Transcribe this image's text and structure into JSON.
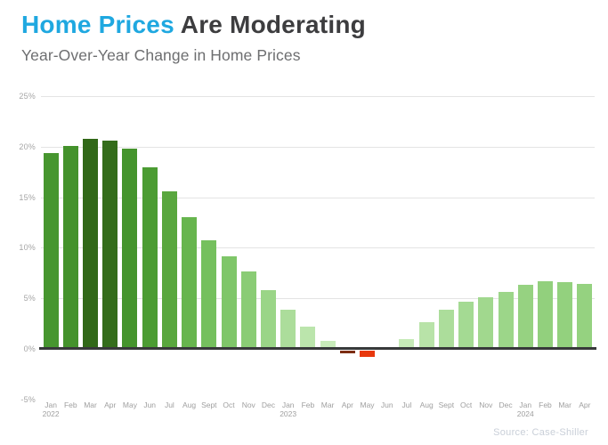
{
  "header": {
    "title_highlight": "Home Prices ",
    "title_rest": "Are Moderating",
    "subtitle": "Year-Over-Year Change in Home Prices"
  },
  "source": "Source: Case-Shiller",
  "colors": {
    "title_highlight": "#1fa8e0",
    "title_rest": "#3d3d3f",
    "subtitle_text": "#6d6e70",
    "axis_tick_text": "#a6a6a6",
    "month_label_text": "#9f9f9f",
    "gridline": "#e4e4e4",
    "zero_axis": "#37393a",
    "negative_bar_strong": "#e8380d",
    "negative_bar_slight": "#7c2d12",
    "source_text": "#c9cfd8",
    "green_scale": [
      [
        0,
        "#cfeec2"
      ],
      [
        4,
        "#abdd9a"
      ],
      [
        7,
        "#8fcf7a"
      ],
      [
        10,
        "#79c363"
      ],
      [
        13,
        "#67b54e"
      ],
      [
        16,
        "#57a53c"
      ],
      [
        18,
        "#4c9c33"
      ],
      [
        20.2,
        "#44922c"
      ],
      [
        20.5,
        "#356f1c"
      ],
      [
        21,
        "#2e6315"
      ]
    ]
  },
  "chart_data": {
    "type": "bar",
    "title": "Home Prices Are Moderating",
    "subtitle": "Year-Over-Year Change in Home Prices",
    "unit": "%",
    "categories": [
      "Jan 2022",
      "Feb",
      "Mar",
      "Apr",
      "May",
      "Jun",
      "Jul",
      "Aug",
      "Sept",
      "Oct",
      "Nov",
      "Dec",
      "Jan 2023",
      "Feb",
      "Mar",
      "Apr",
      "May",
      "Jun",
      "Jul",
      "Aug",
      "Sept",
      "Oct",
      "Nov",
      "Dec",
      "Jan 2024",
      "Feb",
      "Mar",
      "Apr"
    ],
    "values": [
      19.4,
      20.1,
      20.8,
      20.6,
      19.8,
      18.0,
      15.6,
      13.0,
      10.7,
      9.2,
      7.7,
      5.8,
      3.9,
      2.2,
      0.8,
      -0.2,
      -0.5,
      0.0,
      1.0,
      2.6,
      3.9,
      4.7,
      5.1,
      5.6,
      6.3,
      6.7,
      6.6,
      6.4
    ],
    "yticks": [
      {
        "v": 25,
        "label": "25%"
      },
      {
        "v": 20,
        "label": "20%"
      },
      {
        "v": 15,
        "label": "15%"
      },
      {
        "v": 10,
        "label": "10%"
      },
      {
        "v": 5,
        "label": "5%"
      },
      {
        "v": 0,
        "label": "0%"
      },
      {
        "v": -5,
        "label": "-5%"
      }
    ],
    "ylim": [
      -5,
      25
    ],
    "grid": "horizontal light-gray lines at 5% steps above zero; bold dark line at 0%; no line at -5%",
    "legend": "none",
    "source": "Source: Case-Shiller"
  }
}
